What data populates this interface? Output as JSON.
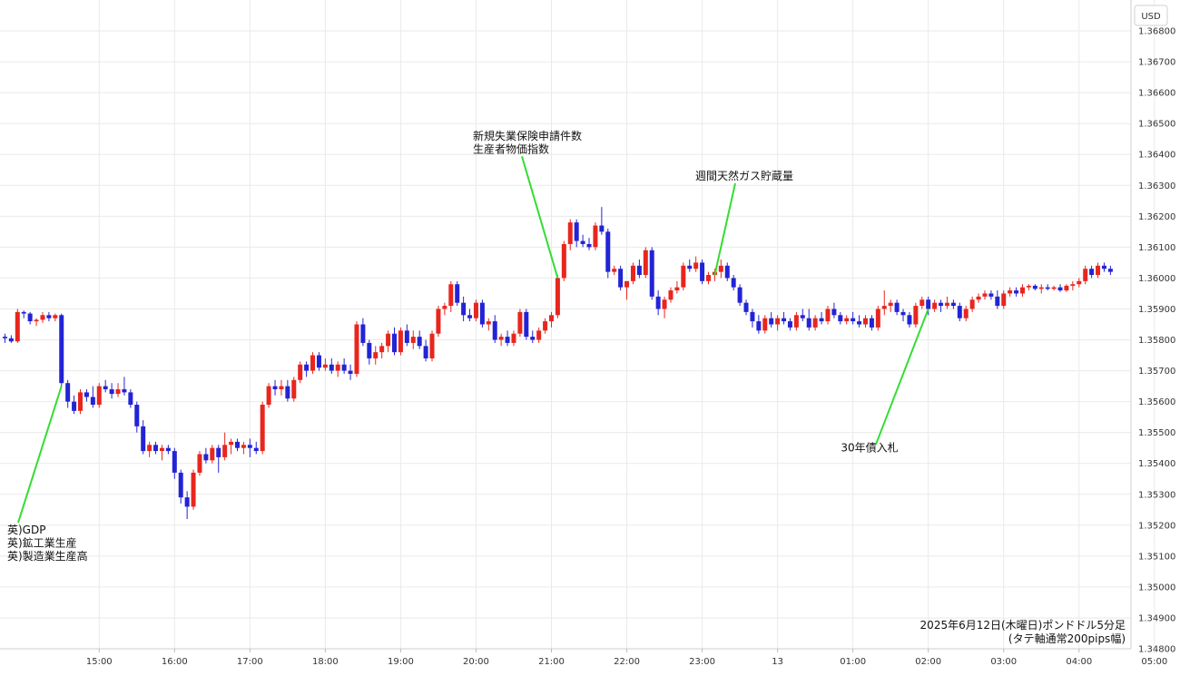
{
  "chart_data": {
    "type": "candlestick",
    "currency_label": "USD",
    "caption_line1": "2025年6月12日(木曜日)ポンドドル5分足",
    "caption_line2": "(タテ軸通常200pips幅)",
    "ylim": [
      1.348,
      1.369
    ],
    "y_ticks": [
      "1.36800",
      "1.36700",
      "1.36600",
      "1.36500",
      "1.36400",
      "1.36300",
      "1.36200",
      "1.36100",
      "1.36000",
      "1.35900",
      "1.35800",
      "1.35700",
      "1.35600",
      "1.35500",
      "1.35400",
      "1.35300",
      "1.35200",
      "1.35100",
      "1.35000",
      "1.34900",
      "1.34800"
    ],
    "x_ticks": [
      {
        "label": "15:00",
        "bar": 15
      },
      {
        "label": "16:00",
        "bar": 27
      },
      {
        "label": "17:00",
        "bar": 39
      },
      {
        "label": "18:00",
        "bar": 51
      },
      {
        "label": "19:00",
        "bar": 63
      },
      {
        "label": "20:00",
        "bar": 75
      },
      {
        "label": "21:00",
        "bar": 87
      },
      {
        "label": "22:00",
        "bar": 99
      },
      {
        "label": "23:00",
        "bar": 111
      },
      {
        "label": "13",
        "bar": 123
      },
      {
        "label": "01:00",
        "bar": 135
      },
      {
        "label": "02:00",
        "bar": 147
      },
      {
        "label": "03:00",
        "bar": 159
      },
      {
        "label": "04:00",
        "bar": 171
      },
      {
        "label": "05:00",
        "bar": 183
      }
    ],
    "colors": {
      "up": "#e8261e",
      "down": "#2323d6",
      "annotation_line": "#33dd33",
      "grid": "#eaeaea"
    },
    "start_time": "2025-06-12 13:50",
    "interval": "5min",
    "ohlc": [
      [
        1.3581,
        1.3582,
        1.3579,
        1.35805
      ],
      [
        1.35805,
        1.35815,
        1.3579,
        1.35795
      ],
      [
        1.35795,
        1.359,
        1.3579,
        1.3589
      ],
      [
        1.3589,
        1.35895,
        1.3587,
        1.35885
      ],
      [
        1.35885,
        1.3589,
        1.3585,
        1.3586
      ],
      [
        1.3586,
        1.3587,
        1.35845,
        1.35865
      ],
      [
        1.35865,
        1.3589,
        1.35855,
        1.3588
      ],
      [
        1.3588,
        1.3589,
        1.3586,
        1.3587
      ],
      [
        1.3587,
        1.35885,
        1.3586,
        1.3588
      ],
      [
        1.3588,
        1.35885,
        1.3565,
        1.3566
      ],
      [
        1.3566,
        1.3567,
        1.3558,
        1.356
      ],
      [
        1.356,
        1.3562,
        1.3556,
        1.3557
      ],
      [
        1.3557,
        1.3564,
        1.3556,
        1.3563
      ],
      [
        1.3563,
        1.3564,
        1.356,
        1.35615
      ],
      [
        1.35615,
        1.3565,
        1.3558,
        1.3559
      ],
      [
        1.3559,
        1.3566,
        1.3558,
        1.3565
      ],
      [
        1.3565,
        1.3567,
        1.3563,
        1.3564
      ],
      [
        1.3564,
        1.3566,
        1.3561,
        1.35625
      ],
      [
        1.35625,
        1.3566,
        1.35615,
        1.3564
      ],
      [
        1.3564,
        1.3568,
        1.3562,
        1.3563
      ],
      [
        1.3563,
        1.3564,
        1.3558,
        1.3559
      ],
      [
        1.3559,
        1.356,
        1.355,
        1.3552
      ],
      [
        1.3552,
        1.3554,
        1.3543,
        1.3544
      ],
      [
        1.3544,
        1.3547,
        1.3542,
        1.3546
      ],
      [
        1.3546,
        1.3547,
        1.3543,
        1.3544
      ],
      [
        1.3544,
        1.3546,
        1.3541,
        1.3545
      ],
      [
        1.3545,
        1.3546,
        1.3543,
        1.3544
      ],
      [
        1.3544,
        1.3545,
        1.3535,
        1.3537
      ],
      [
        1.3537,
        1.3538,
        1.3527,
        1.3529
      ],
      [
        1.3529,
        1.3531,
        1.3522,
        1.3526
      ],
      [
        1.3526,
        1.3538,
        1.3525,
        1.3537
      ],
      [
        1.3537,
        1.3544,
        1.3536,
        1.3543
      ],
      [
        1.3543,
        1.3545,
        1.354,
        1.3541
      ],
      [
        1.3541,
        1.3546,
        1.354,
        1.3545
      ],
      [
        1.3545,
        1.3546,
        1.3537,
        1.3542
      ],
      [
        1.3542,
        1.355,
        1.3541,
        1.3546
      ],
      [
        1.3546,
        1.3548,
        1.3543,
        1.3547
      ],
      [
        1.3547,
        1.3548,
        1.3544,
        1.3545
      ],
      [
        1.3545,
        1.3547,
        1.3543,
        1.3546
      ],
      [
        1.3546,
        1.3548,
        1.3542,
        1.3545
      ],
      [
        1.3545,
        1.3547,
        1.3543,
        1.3544
      ],
      [
        1.3544,
        1.356,
        1.3543,
        1.3559
      ],
      [
        1.3559,
        1.3566,
        1.3558,
        1.3565
      ],
      [
        1.3565,
        1.3567,
        1.3562,
        1.3564
      ],
      [
        1.3564,
        1.3567,
        1.3562,
        1.3565
      ],
      [
        1.3565,
        1.3567,
        1.356,
        1.3561
      ],
      [
        1.3561,
        1.3568,
        1.356,
        1.3567
      ],
      [
        1.3567,
        1.3573,
        1.3566,
        1.3572
      ],
      [
        1.3572,
        1.3573,
        1.3568,
        1.357
      ],
      [
        1.357,
        1.3576,
        1.3569,
        1.3575
      ],
      [
        1.3575,
        1.3576,
        1.357,
        1.3571
      ],
      [
        1.3571,
        1.3574,
        1.357,
        1.3572
      ],
      [
        1.3572,
        1.3574,
        1.3569,
        1.357
      ],
      [
        1.357,
        1.3573,
        1.3568,
        1.3572
      ],
      [
        1.3572,
        1.3574,
        1.3569,
        1.357
      ],
      [
        1.357,
        1.3572,
        1.3567,
        1.3569
      ],
      [
        1.3569,
        1.3586,
        1.3568,
        1.3585
      ],
      [
        1.3585,
        1.3587,
        1.3578,
        1.3579
      ],
      [
        1.3579,
        1.358,
        1.3572,
        1.3574
      ],
      [
        1.3574,
        1.3578,
        1.3572,
        1.3576
      ],
      [
        1.3576,
        1.3579,
        1.3574,
        1.3578
      ],
      [
        1.3578,
        1.3583,
        1.3576,
        1.3582
      ],
      [
        1.3582,
        1.3584,
        1.3575,
        1.3576
      ],
      [
        1.3576,
        1.3584,
        1.3575,
        1.3583
      ],
      [
        1.3583,
        1.3585,
        1.3578,
        1.3579
      ],
      [
        1.3579,
        1.3583,
        1.3577,
        1.3581
      ],
      [
        1.3581,
        1.3583,
        1.3577,
        1.3578
      ],
      [
        1.3578,
        1.358,
        1.3573,
        1.3574
      ],
      [
        1.3574,
        1.3583,
        1.3573,
        1.3582
      ],
      [
        1.3582,
        1.3591,
        1.3581,
        1.359
      ],
      [
        1.359,
        1.3592,
        1.3588,
        1.3591
      ],
      [
        1.3591,
        1.3599,
        1.3589,
        1.3598
      ],
      [
        1.3598,
        1.3599,
        1.3591,
        1.3592
      ],
      [
        1.3592,
        1.3594,
        1.3586,
        1.3588
      ],
      [
        1.3588,
        1.359,
        1.3586,
        1.3587
      ],
      [
        1.3587,
        1.3593,
        1.3586,
        1.3592
      ],
      [
        1.3592,
        1.3593,
        1.3584,
        1.3585
      ],
      [
        1.3585,
        1.3587,
        1.3583,
        1.3586
      ],
      [
        1.3586,
        1.3588,
        1.3579,
        1.358
      ],
      [
        1.358,
        1.3582,
        1.3578,
        1.3581
      ],
      [
        1.3581,
        1.3583,
        1.3578,
        1.3579
      ],
      [
        1.3579,
        1.3583,
        1.3578,
        1.3582
      ],
      [
        1.3582,
        1.359,
        1.3581,
        1.3589
      ],
      [
        1.3589,
        1.359,
        1.358,
        1.3581
      ],
      [
        1.3581,
        1.3583,
        1.3579,
        1.358
      ],
      [
        1.358,
        1.3584,
        1.3579,
        1.3583
      ],
      [
        1.3583,
        1.3587,
        1.3582,
        1.3586
      ],
      [
        1.3586,
        1.3589,
        1.3584,
        1.3588
      ],
      [
        1.3588,
        1.3601,
        1.3587,
        1.36
      ],
      [
        1.36,
        1.3612,
        1.3599,
        1.3611
      ],
      [
        1.3611,
        1.3619,
        1.3609,
        1.3618
      ],
      [
        1.3618,
        1.3619,
        1.361,
        1.3612
      ],
      [
        1.3612,
        1.3614,
        1.361,
        1.3611
      ],
      [
        1.3611,
        1.3613,
        1.3609,
        1.361
      ],
      [
        1.361,
        1.3618,
        1.3609,
        1.3617
      ],
      [
        1.3617,
        1.3623,
        1.3614,
        1.3615
      ],
      [
        1.3615,
        1.3616,
        1.36,
        1.3602
      ],
      [
        1.3602,
        1.3604,
        1.3601,
        1.3603
      ],
      [
        1.3603,
        1.3604,
        1.3596,
        1.3597
      ],
      [
        1.3597,
        1.3599,
        1.3593,
        1.3599
      ],
      [
        1.3599,
        1.3605,
        1.3598,
        1.3604
      ],
      [
        1.3604,
        1.3606,
        1.36,
        1.3601
      ],
      [
        1.3601,
        1.361,
        1.36,
        1.3609
      ],
      [
        1.3609,
        1.361,
        1.3593,
        1.3594
      ],
      [
        1.3594,
        1.3596,
        1.3588,
        1.359
      ],
      [
        1.359,
        1.3594,
        1.3587,
        1.3593
      ],
      [
        1.3593,
        1.3597,
        1.3592,
        1.3596
      ],
      [
        1.3596,
        1.3599,
        1.3595,
        1.3597
      ],
      [
        1.3597,
        1.3605,
        1.3596,
        1.3604
      ],
      [
        1.3604,
        1.3606,
        1.3602,
        1.3603
      ],
      [
        1.3603,
        1.3607,
        1.3602,
        1.3605
      ],
      [
        1.3605,
        1.3606,
        1.3598,
        1.3599
      ],
      [
        1.3599,
        1.3602,
        1.3598,
        1.3601
      ],
      [
        1.3601,
        1.3603,
        1.3599,
        1.3602
      ],
      [
        1.3602,
        1.3606,
        1.36,
        1.3604
      ],
      [
        1.3604,
        1.3605,
        1.3599,
        1.36
      ],
      [
        1.36,
        1.3601,
        1.3596,
        1.3597
      ],
      [
        1.3597,
        1.3598,
        1.3591,
        1.3592
      ],
      [
        1.3592,
        1.3593,
        1.3588,
        1.3589
      ],
      [
        1.3589,
        1.359,
        1.3584,
        1.3586
      ],
      [
        1.3586,
        1.3588,
        1.3582,
        1.3583
      ],
      [
        1.3583,
        1.3588,
        1.3582,
        1.3587
      ],
      [
        1.3587,
        1.3589,
        1.3584,
        1.3585
      ],
      [
        1.3585,
        1.3588,
        1.3583,
        1.3587
      ],
      [
        1.3587,
        1.3589,
        1.3585,
        1.3586
      ],
      [
        1.3586,
        1.3587,
        1.3583,
        1.3584
      ],
      [
        1.3584,
        1.3589,
        1.3583,
        1.3588
      ],
      [
        1.3588,
        1.359,
        1.3586,
        1.3587
      ],
      [
        1.3587,
        1.359,
        1.3583,
        1.3584
      ],
      [
        1.3584,
        1.3588,
        1.3583,
        1.3587
      ],
      [
        1.3587,
        1.3589,
        1.3585,
        1.3586
      ],
      [
        1.3586,
        1.3591,
        1.3585,
        1.359
      ],
      [
        1.359,
        1.3592,
        1.3587,
        1.3588
      ],
      [
        1.3588,
        1.3589,
        1.3585,
        1.3586
      ],
      [
        1.3586,
        1.3588,
        1.3585,
        1.3587
      ],
      [
        1.3587,
        1.3589,
        1.3585,
        1.3586
      ],
      [
        1.3586,
        1.3588,
        1.3584,
        1.3585
      ],
      [
        1.3585,
        1.3588,
        1.3584,
        1.3587
      ],
      [
        1.3587,
        1.3588,
        1.3583,
        1.3584
      ],
      [
        1.3584,
        1.3591,
        1.3583,
        1.359
      ],
      [
        1.359,
        1.3596,
        1.3588,
        1.3591
      ],
      [
        1.3591,
        1.3593,
        1.3589,
        1.3592
      ],
      [
        1.3592,
        1.3593,
        1.3588,
        1.3589
      ],
      [
        1.3589,
        1.359,
        1.3586,
        1.3588
      ],
      [
        1.3588,
        1.3589,
        1.3584,
        1.3585
      ],
      [
        1.3585,
        1.3592,
        1.3584,
        1.3591
      ],
      [
        1.3591,
        1.3594,
        1.359,
        1.3593
      ],
      [
        1.3593,
        1.3594,
        1.3588,
        1.359
      ],
      [
        1.359,
        1.3593,
        1.3589,
        1.3592
      ],
      [
        1.3592,
        1.3593,
        1.3589,
        1.3591
      ],
      [
        1.3591,
        1.3594,
        1.359,
        1.3592
      ],
      [
        1.3592,
        1.3593,
        1.359,
        1.3591
      ],
      [
        1.3591,
        1.3592,
        1.3586,
        1.3587
      ],
      [
        1.3587,
        1.3591,
        1.3586,
        1.359
      ],
      [
        1.359,
        1.3594,
        1.3589,
        1.3593
      ],
      [
        1.3593,
        1.3595,
        1.3592,
        1.3594
      ],
      [
        1.3594,
        1.3596,
        1.3593,
        1.3595
      ],
      [
        1.3595,
        1.3596,
        1.3593,
        1.3594
      ],
      [
        1.3594,
        1.3596,
        1.359,
        1.3591
      ],
      [
        1.3591,
        1.3596,
        1.359,
        1.3595
      ],
      [
        1.3595,
        1.3597,
        1.3594,
        1.3596
      ],
      [
        1.3596,
        1.3597,
        1.3594,
        1.3595
      ],
      [
        1.3595,
        1.3598,
        1.3594,
        1.3597
      ],
      [
        1.3597,
        1.3598,
        1.3596,
        1.35975
      ],
      [
        1.35975,
        1.3598,
        1.3596,
        1.35965
      ],
      [
        1.35965,
        1.3598,
        1.3595,
        1.3597
      ],
      [
        1.3597,
        1.3598,
        1.3596,
        1.35965
      ],
      [
        1.35965,
        1.35975,
        1.3596,
        1.3597
      ],
      [
        1.3597,
        1.3598,
        1.35955,
        1.3596
      ],
      [
        1.3596,
        1.3598,
        1.35955,
        1.35975
      ],
      [
        1.35975,
        1.3599,
        1.3596,
        1.3598
      ],
      [
        1.3598,
        1.36,
        1.3597,
        1.3599
      ],
      [
        1.3599,
        1.3604,
        1.3598,
        1.3603
      ],
      [
        1.3603,
        1.3604,
        1.36,
        1.3601
      ],
      [
        1.3601,
        1.3605,
        1.36,
        1.3604
      ],
      [
        1.3604,
        1.3605,
        1.3602,
        1.3603
      ],
      [
        1.3603,
        1.3604,
        1.3601,
        1.3602
      ]
    ],
    "annotations": [
      {
        "lines": [
          "英)GDP",
          "英)鉱工業生産",
          "英)製造業生産高"
        ],
        "bar": 9,
        "price": 1.3565,
        "text_price": 1.35185,
        "text_align": "start"
      },
      {
        "lines": [
          "新規失業保険申請件数",
          "生産者物価指数"
        ],
        "bar": 88,
        "price": 1.36,
        "text_price": 1.3646,
        "text_align": "start"
      },
      {
        "lines": [
          "週間天然ガス貯蔵量"
        ],
        "bar": 113,
        "price": 1.3601,
        "text_price": 1.3633,
        "text_align": "middle"
      },
      {
        "lines": [
          "30年債入札"
        ],
        "bar": 147,
        "price": 1.359,
        "text_price": 1.3545,
        "text_align": "middle"
      }
    ]
  }
}
